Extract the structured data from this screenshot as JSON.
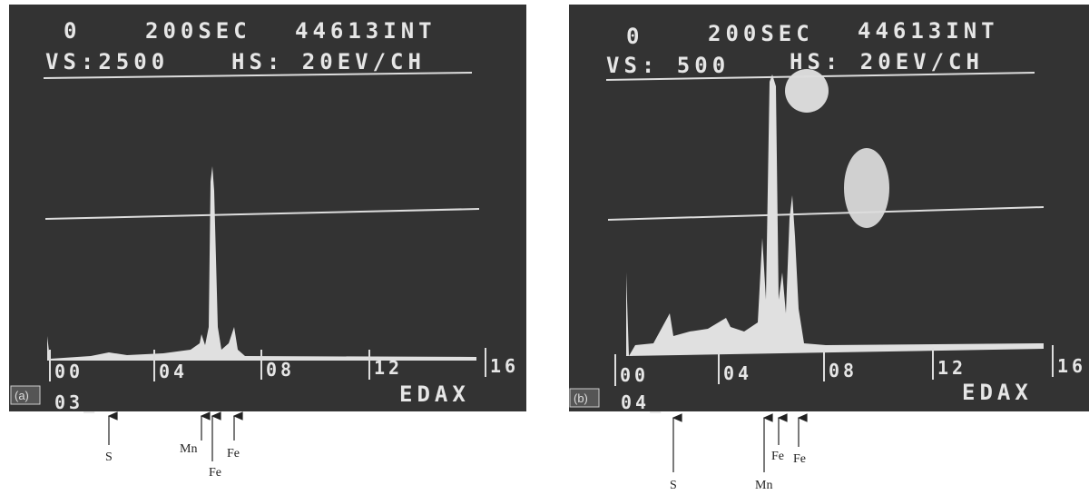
{
  "panels": [
    {
      "header": [
        "0",
        "200SEC",
        "44613INT",
        "VS:2500",
        "HS: 20EV/CH"
      ],
      "ticks": [
        "00",
        "04",
        "08",
        "12",
        "16"
      ],
      "tag": "(a)",
      "cursor": "03_",
      "brand": "EDAX",
      "elements": [
        "S",
        "Mn",
        "Fe",
        "Fe"
      ]
    },
    {
      "header": [
        "0",
        "200SEC",
        "44613INT",
        "VS: 500",
        "HS: 20EV/CH"
      ],
      "ticks": [
        "00",
        "04",
        "08",
        "12",
        "16"
      ],
      "tag": "(b)",
      "cursor": "04_",
      "brand": "EDAX",
      "elements": [
        "S",
        "Mn",
        "Fe",
        "Fe"
      ]
    }
  ]
}
